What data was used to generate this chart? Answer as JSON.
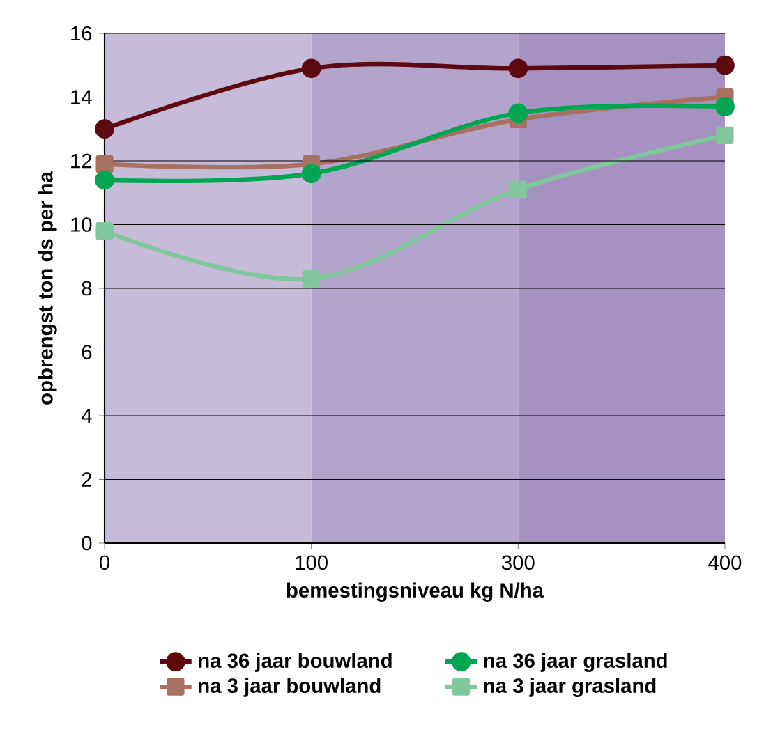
{
  "chart_data": {
    "type": "line",
    "xlabel": "bemestingsniveau kg N/ha",
    "ylabel": "opbrengst ton ds per ha",
    "categories": [
      "0",
      "100",
      "300",
      "400"
    ],
    "series": [
      {
        "name": "na 36 jaar bouwland",
        "color": "#5c0a0f",
        "marker": "circle",
        "values": [
          13.0,
          14.9,
          14.9,
          15.0
        ]
      },
      {
        "name": "na 3 jaar bouwland",
        "color": "#a87060",
        "marker": "square",
        "values": [
          11.9,
          11.9,
          13.3,
          14.0
        ]
      },
      {
        "name": "na 36 jaar grasland",
        "color": "#00a651",
        "marker": "circle",
        "values": [
          11.4,
          11.6,
          13.5,
          13.7
        ]
      },
      {
        "name": "na 3 jaar grasland",
        "color": "#80c89b",
        "marker": "square",
        "values": [
          9.8,
          8.3,
          11.1,
          12.8
        ]
      }
    ],
    "bands": [
      {
        "axis": "x",
        "from": "0",
        "to": "100",
        "color": "#c6bbd8"
      },
      {
        "axis": "x",
        "from": "100",
        "to": "300",
        "color": "#b3a4cc"
      },
      {
        "axis": "x",
        "from": "300",
        "to": "400",
        "color": "#a592c0"
      }
    ],
    "ylim": [
      0,
      16
    ],
    "yticks": [
      0,
      2,
      4,
      6,
      8,
      10,
      12,
      14,
      16
    ],
    "grid": "y",
    "legend": "bottom",
    "line_style": "solid"
  }
}
